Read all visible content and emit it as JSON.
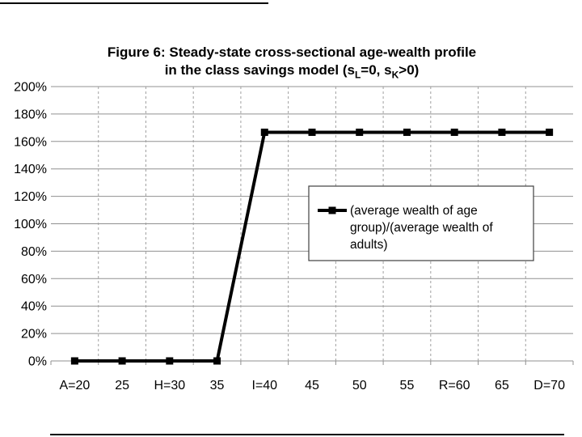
{
  "page": {
    "background": "#ffffff"
  },
  "title": {
    "line1": "Figure 6: Steady-state cross-sectional age-wealth profile",
    "line2_prefix": "in the class savings model (s",
    "line2_sub1": "L",
    "line2_mid": "=0, s",
    "line2_sub2": "K",
    "line2_suffix": ">0)"
  },
  "chart_data": {
    "type": "line",
    "title": "Figure 6: Steady-state cross-sectional age-wealth profile in the class savings model (sL=0, sK>0)",
    "categories": [
      "A=20",
      "25",
      "H=30",
      "35",
      "I=40",
      "45",
      "50",
      "55",
      "R=60",
      "65",
      "D=70"
    ],
    "series": [
      {
        "name": "(average wealth of age group)/(average wealth of adults)",
        "values": [
          0,
          0,
          0,
          0,
          166.7,
          166.7,
          166.7,
          166.7,
          166.7,
          166.7,
          166.7
        ]
      }
    ],
    "xlabel": "",
    "ylabel": "",
    "ylim": [
      0,
      200
    ],
    "ytick_step": 20,
    "ytick_labels": [
      "0%",
      "20%",
      "40%",
      "60%",
      "80%",
      "100%",
      "120%",
      "140%",
      "160%",
      "180%",
      "200%"
    ],
    "grid": true,
    "marker": "square",
    "legend": {
      "position": "middle-right",
      "lines": [
        "(average wealth of age",
        "group)/(average wealth of",
        "adults)"
      ]
    },
    "colors": {
      "series": "#000000",
      "gridline": "#909090",
      "dashed_gridline": "#a0a0a0",
      "text": "#000000",
      "legend_border": "#404040",
      "legend_fill": "#ffffff"
    }
  }
}
